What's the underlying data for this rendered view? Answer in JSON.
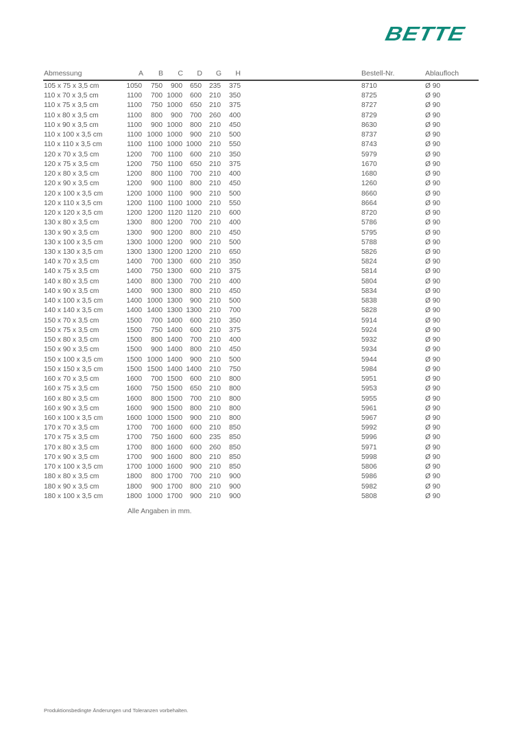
{
  "brand": {
    "logo_text": "BETTE",
    "color": "#0e8a7a"
  },
  "table": {
    "headers": {
      "dimension": "Abmessung",
      "a": "A",
      "b": "B",
      "c": "C",
      "d": "D",
      "g": "G",
      "h": "H",
      "order_no": "Bestell-Nr.",
      "drain": "Ablaufloch"
    },
    "columns": [
      "dimension",
      "a",
      "b",
      "c",
      "d",
      "g",
      "h",
      "order_no",
      "drain"
    ],
    "rows": [
      [
        "105 x 75 x 3,5 cm",
        "1050",
        "750",
        "900",
        "650",
        "235",
        "375",
        "8710",
        "Ø 90"
      ],
      [
        "110 x 70 x 3,5 cm",
        "1100",
        "700",
        "1000",
        "600",
        "210",
        "350",
        "8725",
        "Ø 90"
      ],
      [
        "110 x 75 x 3,5 cm",
        "1100",
        "750",
        "1000",
        "650",
        "210",
        "375",
        "8727",
        "Ø 90"
      ],
      [
        "110 x 80 x 3,5 cm",
        "1100",
        "800",
        "900",
        "700",
        "260",
        "400",
        "8729",
        "Ø 90"
      ],
      [
        "110 x 90 x 3,5 cm",
        "1100",
        "900",
        "1000",
        "800",
        "210",
        "450",
        "8630",
        "Ø 90"
      ],
      [
        "110 x 100 x 3,5 cm",
        "1100",
        "1000",
        "1000",
        "900",
        "210",
        "500",
        "8737",
        "Ø 90"
      ],
      [
        "110 x 110 x 3,5 cm",
        "1100",
        "1100",
        "1000",
        "1000",
        "210",
        "550",
        "8743",
        "Ø 90"
      ],
      [
        "120 x 70 x 3,5 cm",
        "1200",
        "700",
        "1100",
        "600",
        "210",
        "350",
        "5979",
        "Ø 90"
      ],
      [
        "120 x 75 x 3,5 cm",
        "1200",
        "750",
        "1100",
        "650",
        "210",
        "375",
        "1670",
        "Ø 90"
      ],
      [
        "120 x 80 x 3,5 cm",
        "1200",
        "800",
        "1100",
        "700",
        "210",
        "400",
        "1680",
        "Ø 90"
      ],
      [
        "120 x 90 x 3,5 cm",
        "1200",
        "900",
        "1100",
        "800",
        "210",
        "450",
        "1260",
        "Ø 90"
      ],
      [
        "120 x 100 x 3,5 cm",
        "1200",
        "1000",
        "1100",
        "900",
        "210",
        "500",
        "8660",
        "Ø 90"
      ],
      [
        "120 x 110 x 3,5 cm",
        "1200",
        "1100",
        "1100",
        "1000",
        "210",
        "550",
        "8664",
        "Ø 90"
      ],
      [
        "120 x 120 x 3,5 cm",
        "1200",
        "1200",
        "1120",
        "1120",
        "210",
        "600",
        "8720",
        "Ø 90"
      ],
      [
        "130 x 80 x 3,5 cm",
        "1300",
        "800",
        "1200",
        "700",
        "210",
        "400",
        "5786",
        "Ø 90"
      ],
      [
        "130 x 90 x 3,5 cm",
        "1300",
        "900",
        "1200",
        "800",
        "210",
        "450",
        "5795",
        "Ø 90"
      ],
      [
        "130 x 100 x 3,5 cm",
        "1300",
        "1000",
        "1200",
        "900",
        "210",
        "500",
        "5788",
        "Ø 90"
      ],
      [
        "130 x 130 x 3,5 cm",
        "1300",
        "1300",
        "1200",
        "1200",
        "210",
        "650",
        "5826",
        "Ø 90"
      ],
      [
        "140 x 70 x 3,5 cm",
        "1400",
        "700",
        "1300",
        "600",
        "210",
        "350",
        "5824",
        "Ø 90"
      ],
      [
        "140 x 75 x 3,5 cm",
        "1400",
        "750",
        "1300",
        "600",
        "210",
        "375",
        "5814",
        "Ø 90"
      ],
      [
        "140 x 80 x 3,5 cm",
        "1400",
        "800",
        "1300",
        "700",
        "210",
        "400",
        "5804",
        "Ø 90"
      ],
      [
        "140 x 90 x 3,5 cm",
        "1400",
        "900",
        "1300",
        "800",
        "210",
        "450",
        "5834",
        "Ø 90"
      ],
      [
        "140 x 100 x 3,5 cm",
        "1400",
        "1000",
        "1300",
        "900",
        "210",
        "500",
        "5838",
        "Ø 90"
      ],
      [
        "140 x 140 x 3,5 cm",
        "1400",
        "1400",
        "1300",
        "1300",
        "210",
        "700",
        "5828",
        "Ø 90"
      ],
      [
        "150 x 70 x 3,5 cm",
        "1500",
        "700",
        "1400",
        "600",
        "210",
        "350",
        "5914",
        "Ø 90"
      ],
      [
        "150 x 75 x 3,5 cm",
        "1500",
        "750",
        "1400",
        "600",
        "210",
        "375",
        "5924",
        "Ø 90"
      ],
      [
        "150 x 80 x 3,5 cm",
        "1500",
        "800",
        "1400",
        "700",
        "210",
        "400",
        "5932",
        "Ø 90"
      ],
      [
        "150 x 90 x 3,5 cm",
        "1500",
        "900",
        "1400",
        "800",
        "210",
        "450",
        "5934",
        "Ø 90"
      ],
      [
        "150 x 100 x 3,5 cm",
        "1500",
        "1000",
        "1400",
        "900",
        "210",
        "500",
        "5944",
        "Ø 90"
      ],
      [
        "150 x 150 x 3,5 cm",
        "1500",
        "1500",
        "1400",
        "1400",
        "210",
        "750",
        "5984",
        "Ø 90"
      ],
      [
        "160 x 70 x 3,5 cm",
        "1600",
        "700",
        "1500",
        "600",
        "210",
        "800",
        "5951",
        "Ø 90"
      ],
      [
        "160 x 75 x 3,5 cm",
        "1600",
        "750",
        "1500",
        "650",
        "210",
        "800",
        "5953",
        "Ø 90"
      ],
      [
        "160 x 80 x 3,5 cm",
        "1600",
        "800",
        "1500",
        "700",
        "210",
        "800",
        "5955",
        "Ø 90"
      ],
      [
        "160 x 90 x 3,5 cm",
        "1600",
        "900",
        "1500",
        "800",
        "210",
        "800",
        "5961",
        "Ø 90"
      ],
      [
        "160 x 100 x 3,5 cm",
        "1600",
        "1000",
        "1500",
        "900",
        "210",
        "800",
        "5967",
        "Ø 90"
      ],
      [
        "170 x 70 x 3,5 cm",
        "1700",
        "700",
        "1600",
        "600",
        "210",
        "850",
        "5992",
        "Ø 90"
      ],
      [
        "170 x 75 x 3,5 cm",
        "1700",
        "750",
        "1600",
        "600",
        "235",
        "850",
        "5996",
        "Ø 90"
      ],
      [
        "170 x 80 x 3,5 cm",
        "1700",
        "800",
        "1600",
        "600",
        "260",
        "850",
        "5971",
        "Ø 90"
      ],
      [
        "170 x 90 x 3,5 cm",
        "1700",
        "900",
        "1600",
        "800",
        "210",
        "850",
        "5998",
        "Ø 90"
      ],
      [
        "170 x 100 x 3,5 cm",
        "1700",
        "1000",
        "1600",
        "900",
        "210",
        "850",
        "5806",
        "Ø 90"
      ],
      [
        "180 x 80 x 3,5 cm",
        "1800",
        "800",
        "1700",
        "700",
        "210",
        "900",
        "5986",
        "Ø 90"
      ],
      [
        "180 x 90 x 3,5 cm",
        "1800",
        "900",
        "1700",
        "800",
        "210",
        "900",
        "5982",
        "Ø 90"
      ],
      [
        "180 x 100 x 3,5 cm",
        "1800",
        "1000",
        "1700",
        "900",
        "210",
        "900",
        "5808",
        "Ø 90"
      ]
    ],
    "note": "Alle Angaben in mm."
  },
  "footer": {
    "disclaimer": "Produktionsbedingte Änderungen und Toleranzen vorbehalten."
  }
}
